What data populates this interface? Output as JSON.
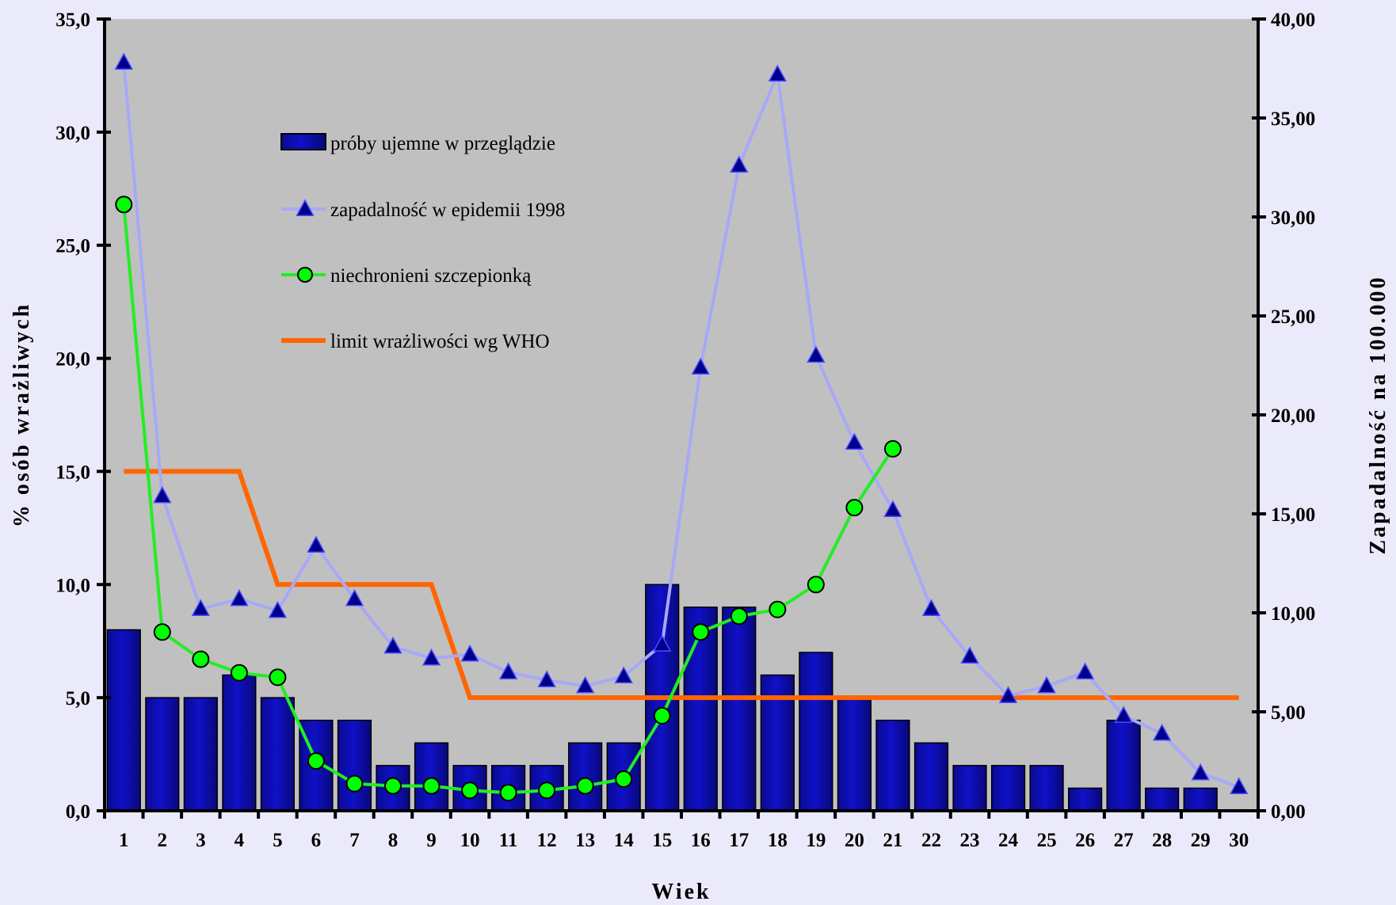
{
  "chart_data": {
    "type": "bar",
    "title": "",
    "xlabel": "Wiek",
    "ylabel": "% osób wrażliwych",
    "y2label": "Zapadalność na 100.000",
    "categories": [
      "1",
      "2",
      "3",
      "4",
      "5",
      "6",
      "7",
      "8",
      "9",
      "10",
      "11",
      "12",
      "13",
      "14",
      "15",
      "16",
      "17",
      "18",
      "19",
      "20",
      "21",
      "22",
      "23",
      "24",
      "25",
      "26",
      "27",
      "28",
      "29",
      "30"
    ],
    "ylim": [
      0,
      35
    ],
    "y2lim": [
      0,
      40
    ],
    "y_ticks": [
      "0,0",
      "5,0",
      "10,0",
      "15,0",
      "20,0",
      "25,0",
      "30,0",
      "35,0"
    ],
    "y2_ticks": [
      "0,00",
      "5,00",
      "10,00",
      "15,00",
      "20,00",
      "25,00",
      "30,00",
      "35,00",
      "40,00"
    ],
    "grid": false,
    "legend_position": "top-left",
    "colors": {
      "plot_bg": "#C0C0C0",
      "page_bg": "#EAEAFA",
      "bars": "#1010C8",
      "incidence_line": "#A8A8F8",
      "incidence_marker": "#00008B",
      "unprotected_line": "#22EE22",
      "unprotected_marker": "#00FF00",
      "who_limit": "#FF6600"
    },
    "series": [
      {
        "name": "próby ujemne w przeglądzie",
        "kind": "bar",
        "axis": "left",
        "values": [
          8,
          5,
          5,
          6,
          5,
          4,
          4,
          2,
          3,
          2,
          2,
          2,
          3,
          3,
          10,
          9,
          9,
          6,
          7,
          5,
          4,
          3,
          2,
          2,
          2,
          1,
          4,
          1,
          1,
          null
        ]
      },
      {
        "name": "zapadalność w epidemii 1998",
        "kind": "line",
        "marker": "triangle",
        "axis": "right",
        "values": [
          37.8,
          15.9,
          10.2,
          10.7,
          10.1,
          13.4,
          10.7,
          8.3,
          7.7,
          7.9,
          7.0,
          6.6,
          6.3,
          6.8,
          8.4,
          22.4,
          32.6,
          37.2,
          23.0,
          18.6,
          15.2,
          10.2,
          7.8,
          5.8,
          6.3,
          7.0,
          4.8,
          3.9,
          1.9,
          1.2
        ]
      },
      {
        "name": "niechronieni szczepionką",
        "kind": "line",
        "marker": "circle",
        "axis": "left",
        "values": [
          26.8,
          7.9,
          6.7,
          6.1,
          5.9,
          2.2,
          1.2,
          1.1,
          1.1,
          0.9,
          0.8,
          0.9,
          1.1,
          1.4,
          4.2,
          7.9,
          8.6,
          8.9,
          10.0,
          13.4,
          16.0,
          null,
          null,
          null,
          null,
          null,
          null,
          null,
          null,
          null
        ]
      },
      {
        "name": "limit wrażliwości wg WHO",
        "kind": "line",
        "axis": "left",
        "points": [
          [
            1,
            15
          ],
          [
            4,
            15
          ],
          [
            5,
            10
          ],
          [
            9,
            10
          ],
          [
            10,
            5
          ],
          [
            30,
            5
          ]
        ]
      }
    ]
  }
}
